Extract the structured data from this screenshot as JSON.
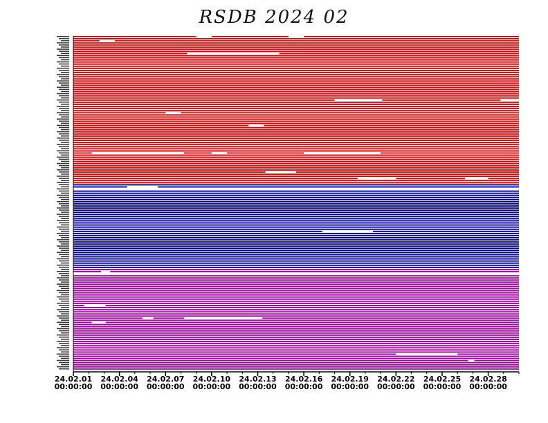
{
  "chart_data": {
    "type": "timeline",
    "title": "RSDB  2024  02",
    "x_ticks": [
      {
        "date": "24.02.01",
        "time": "00:00:00"
      },
      {
        "date": "24.02.04",
        "time": "00:00:00"
      },
      {
        "date": "24.02.07",
        "time": "00:00:00"
      },
      {
        "date": "24.02.10",
        "time": "00:00:00"
      },
      {
        "date": "24.02.13",
        "time": "00:00:00"
      },
      {
        "date": "24.02.16",
        "time": "00:00:00"
      },
      {
        "date": "24.02.19",
        "time": "00:00:00"
      },
      {
        "date": "24.02.22",
        "time": "00:00:00"
      },
      {
        "date": "24.02.25",
        "time": "00:00:00"
      },
      {
        "date": "24.02.28",
        "time": "00:00:00"
      }
    ],
    "x_range": [
      "2024-02-01 00:00:00",
      "2024-03-01 00:00:00"
    ],
    "groups": [
      {
        "color": "#e00000",
        "row_count": 70
      },
      {
        "color": "#000090",
        "row_count": 40
      },
      {
        "color": "#a000a0",
        "row_count": 48
      }
    ],
    "gaps": [
      {
        "row": 0,
        "start_day": 8.0,
        "end_day": 9.0
      },
      {
        "row": 0,
        "start_day": 14.0,
        "end_day": 15.0
      },
      {
        "row": 2,
        "start_day": 1.7,
        "end_day": 2.7
      },
      {
        "row": 8,
        "start_day": 7.4,
        "end_day": 13.4
      },
      {
        "row": 30,
        "start_day": 17.0,
        "end_day": 20.1
      },
      {
        "row": 30,
        "start_day": 27.8,
        "end_day": 29.0
      },
      {
        "row": 36,
        "start_day": 6.0,
        "end_day": 7.0
      },
      {
        "row": 42,
        "start_day": 11.4,
        "end_day": 12.4
      },
      {
        "row": 55,
        "start_day": 1.2,
        "end_day": 7.2
      },
      {
        "row": 55,
        "start_day": 9.0,
        "end_day": 10.0
      },
      {
        "row": 55,
        "start_day": 15.0,
        "end_day": 20.0
      },
      {
        "row": 64,
        "start_day": 12.5,
        "end_day": 14.5
      },
      {
        "row": 67,
        "start_day": 18.5,
        "end_day": 21.0
      },
      {
        "row": 67,
        "start_day": 25.5,
        "end_day": 27.0
      },
      {
        "row": 71,
        "start_day": 3.5,
        "end_day": 5.5
      },
      {
        "row": 72,
        "start_day": 0.0,
        "end_day": 29.0
      },
      {
        "row": 92,
        "start_day": 16.2,
        "end_day": 19.5
      },
      {
        "row": 111,
        "start_day": 1.8,
        "end_day": 2.4
      },
      {
        "row": 112,
        "start_day": 0.0,
        "end_day": 29.0
      },
      {
        "row": 127,
        "start_day": 0.7,
        "end_day": 2.1
      },
      {
        "row": 133,
        "start_day": 4.5,
        "end_day": 5.2
      },
      {
        "row": 133,
        "start_day": 7.2,
        "end_day": 12.3
      },
      {
        "row": 135,
        "start_day": 1.2,
        "end_day": 2.1
      },
      {
        "row": 150,
        "start_day": 21.0,
        "end_day": 25.0
      },
      {
        "row": 153,
        "start_day": 25.7,
        "end_day": 26.1
      }
    ]
  }
}
